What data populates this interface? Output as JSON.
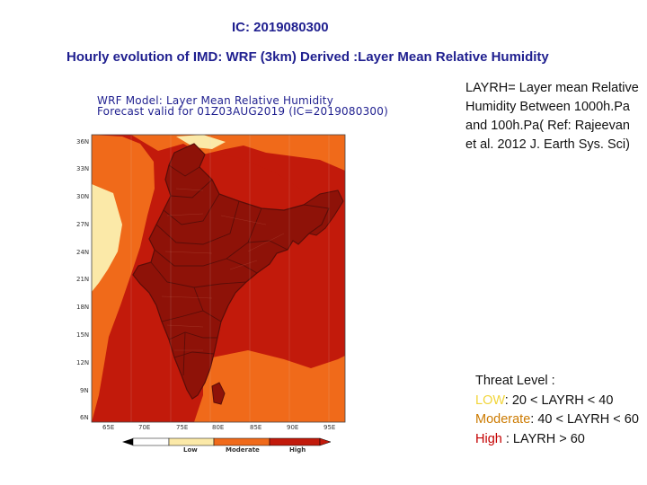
{
  "header": {
    "ic_title": "IC: 2019080300",
    "main_title": "Hourly evolution of IMD: WRF (3km) Derived :Layer Mean Relative Humidity"
  },
  "map": {
    "title_line1": "WRF Model: Layer Mean Relative Humidity",
    "title_line2": "Forecast valid for 01Z03AUG2019  (IC=2019080300)",
    "lat_ticks": [
      "36N",
      "33N",
      "30N",
      "27N",
      "24N",
      "21N",
      "18N",
      "15N",
      "12N",
      "9N",
      "6N"
    ],
    "lon_ticks": [
      "65E",
      "70E",
      "75E",
      "80E",
      "85E",
      "90E",
      "95E"
    ],
    "legend": {
      "low": "Low",
      "moderate": "Moderate",
      "high": "High"
    },
    "colors": {
      "low": "#fbe9a8",
      "moderate": "#f06a1a",
      "high": "#c21a0b",
      "deep": "#8e1208",
      "border": "#5a0d08"
    }
  },
  "note": {
    "text": "LAYRH= Layer mean Relative Humidity Between 1000h.Pa and 100h.Pa( Ref: Rajeevan et al. 2012 J. Earth Sys. Sci)"
  },
  "threat": {
    "heading": "Threat Level :",
    "low_label": "LOW",
    "low_range": ": 20 < LAYRH <  40",
    "moderate_label": "Moderate",
    "moderate_range": ": 40 < LAYRH < 60",
    "high_label": "High",
    "high_range": " : LAYRH > 60"
  }
}
